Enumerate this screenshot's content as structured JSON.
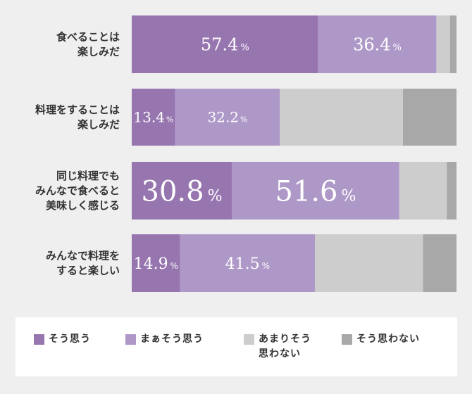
{
  "chart_data": {
    "type": "bar",
    "orientation": "horizontal",
    "stacked": true,
    "xlim": [
      0,
      100
    ],
    "grid": false,
    "legend_position": "bottom",
    "categories": [
      [
        "食べることは",
        "楽しみだ"
      ],
      [
        "料理をすることは",
        "楽しみだ"
      ],
      [
        "同じ料理でも",
        "みんなで食べると",
        "美味しく感じる"
      ],
      [
        "みんなで料理を",
        "すると楽しい"
      ]
    ],
    "series": [
      {
        "name": "そう思う",
        "color": "#9776b0",
        "values": [
          57.4,
          13.4,
          30.8,
          14.9
        ]
      },
      {
        "name": "まぁそう思う",
        "color": "#ae98c8",
        "values": [
          36.4,
          32.2,
          51.6,
          41.5
        ]
      },
      {
        "name": [
          "あまりそう",
          "思わない"
        ],
        "color": "#cdcdcd",
        "values": [
          4.2,
          37.9,
          14.6,
          33.3
        ]
      },
      {
        "name": "そう思わない",
        "color": "#a8a8a8",
        "values": [
          2.0,
          16.5,
          3.0,
          10.3
        ]
      }
    ],
    "data_labels": [
      [
        "57.4",
        "36.4"
      ],
      [
        "13.4",
        "32.2"
      ],
      [
        "30.8",
        "51.6"
      ],
      [
        "14.9",
        "41.5"
      ]
    ],
    "unit": "%"
  }
}
